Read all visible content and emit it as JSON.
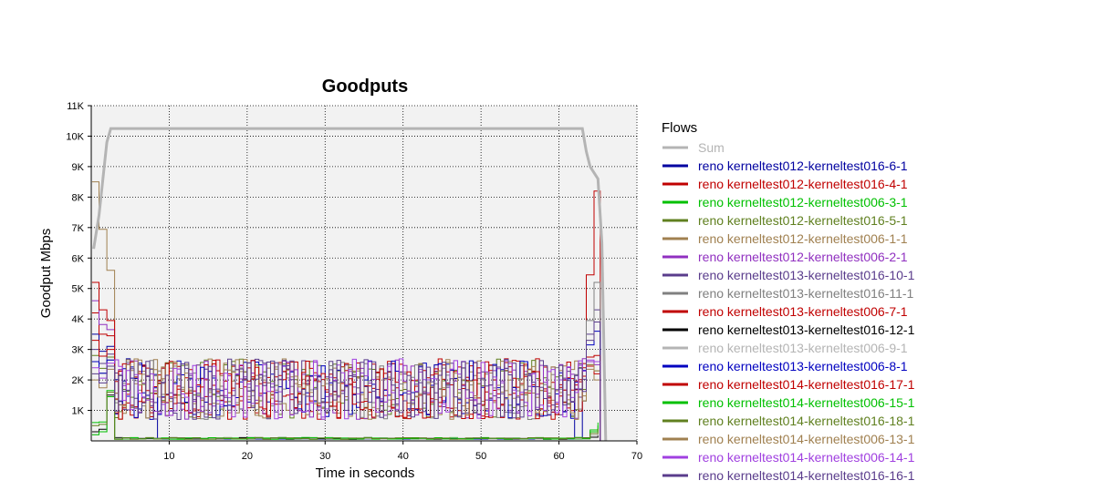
{
  "chart_data": {
    "type": "line",
    "title": "Goodputs",
    "xlabel": "Time in seconds",
    "ylabel": "Goodput Mbps",
    "xlim": [
      0,
      70
    ],
    "ylim": [
      0,
      11000
    ],
    "x_ticks": [
      10,
      20,
      30,
      40,
      50,
      60,
      70
    ],
    "x_tick_labels": [
      "10",
      "20",
      "30",
      "40",
      "50",
      "60",
      "70"
    ],
    "y_ticks": [
      1000,
      2000,
      3000,
      4000,
      5000,
      6000,
      7000,
      8000,
      9000,
      10000,
      11000
    ],
    "y_tick_labels": [
      "1K",
      "2K",
      "3K",
      "4K",
      "5K",
      "6K",
      "7K",
      "8K",
      "9K",
      "10K",
      "11K"
    ],
    "grid": true,
    "legend_title": "Flows",
    "legend_position": "right",
    "sum_series": {
      "name": "Sum",
      "color": "#b4b4b4",
      "x": [
        0.3,
        1,
        2,
        2.5,
        3,
        10,
        20,
        30,
        40,
        50,
        60,
        63,
        63.5,
        64,
        65,
        65.5,
        66
      ],
      "values": [
        6300,
        7400,
        9800,
        10250,
        10250,
        10250,
        10250,
        10250,
        10250,
        10250,
        10250,
        10250,
        9500,
        9000,
        8600,
        6500,
        0
      ]
    },
    "series": [
      {
        "name": "reno kerneltest012-kerneltest016-6-1",
        "color": "#0000a0",
        "mode": "tail",
        "start": 3500,
        "end": 1700
      },
      {
        "name": "reno kerneltest012-kerneltest016-4-1",
        "color": "#c00000",
        "mode": "normal",
        "start": 4200,
        "end": 8200
      },
      {
        "name": "reno kerneltest012-kerneltest006-3-1",
        "color": "#00c000",
        "mode": "low",
        "start": 600,
        "end": 500
      },
      {
        "name": "reno kerneltest012-kerneltest016-5-1",
        "color": "#608020",
        "mode": "normal",
        "start": 2800,
        "end": 2300
      },
      {
        "name": "reno kerneltest012-kerneltest006-1-1",
        "color": "#a08050",
        "mode": "normal",
        "start": 8500,
        "end": 2000
      },
      {
        "name": "reno kerneltest012-kerneltest006-2-1",
        "color": "#9030c0",
        "mode": "normal",
        "start": 4600,
        "end": 2500
      },
      {
        "name": "reno kerneltest013-kerneltest016-10-1",
        "color": "#5a3c8c",
        "mode": "normal",
        "start": 3000,
        "end": 4300
      },
      {
        "name": "reno kerneltest013-kerneltest016-11-1",
        "color": "#808080",
        "mode": "normal",
        "start": 2600,
        "end": 5200
      },
      {
        "name": "reno kerneltest013-kerneltest006-7-1",
        "color": "#c00000",
        "mode": "normal",
        "start": 5200,
        "end": 2200
      },
      {
        "name": "reno kerneltest013-kerneltest016-12-1",
        "color": "#000000",
        "mode": "low",
        "start": 300,
        "end": 200
      },
      {
        "name": "reno kerneltest013-kerneltest006-9-1",
        "color": "#b4b4b4",
        "mode": "low",
        "start": 200,
        "end": 300
      },
      {
        "name": "reno kerneltest013-kerneltest006-8-1",
        "color": "#0000c0",
        "mode": "normal",
        "start": 2600,
        "end": 3600
      },
      {
        "name": "reno kerneltest014-kerneltest016-17-1",
        "color": "#c00000",
        "mode": "normal",
        "start": 3300,
        "end": 2800
      },
      {
        "name": "reno kerneltest014-kerneltest006-15-1",
        "color": "#00c000",
        "mode": "low",
        "start": 200,
        "end": 600
      },
      {
        "name": "reno kerneltest014-kerneltest016-18-1",
        "color": "#608020",
        "mode": "low",
        "start": 500,
        "end": 400
      },
      {
        "name": "reno kerneltest014-kerneltest006-13-1",
        "color": "#a08050",
        "mode": "normal",
        "start": 2000,
        "end": 2300
      },
      {
        "name": "reno kerneltest014-kerneltest006-14-1",
        "color": "#a040e0",
        "mode": "normal",
        "start": 2400,
        "end": 2600
      },
      {
        "name": "reno kerneltest014-kerneltest016-16-1",
        "color": "#5a3c8c",
        "mode": "normal",
        "start": 2200,
        "end": 3900
      }
    ],
    "flow_band": {
      "x_start": 3,
      "x_end": 63,
      "low": 700,
      "high": 2700,
      "step": 0.5
    }
  }
}
